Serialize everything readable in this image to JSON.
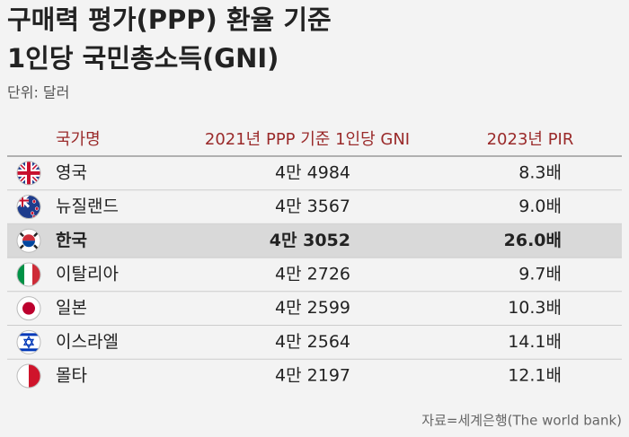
{
  "header": {
    "title": [
      "구매력 평가(PPP) 환율 기준",
      "1인당 국민총소득(GNI)"
    ],
    "unit": "단위: 달러"
  },
  "table": {
    "columns": [
      "국가명",
      "2021년 PPP 기준 1인당 GNI",
      "2023년 PIR"
    ],
    "rows": [
      [
        "영국",
        "4만 4984",
        "8.3배"
      ],
      [
        "뉴질랜드",
        "4만 3567",
        "9.0배"
      ],
      [
        "한국",
        "4만 3052",
        "26.0배"
      ],
      [
        "이탈리아",
        "4만 2726",
        "9.7배"
      ],
      [
        "일본",
        "4만 2599",
        "10.3배"
      ],
      [
        "이스라엘",
        "4만 2564",
        "14.1배"
      ],
      [
        "몰타",
        "4만 2197",
        "12.1배"
      ]
    ]
  },
  "source": "자료=세계은행(The world bank)"
}
